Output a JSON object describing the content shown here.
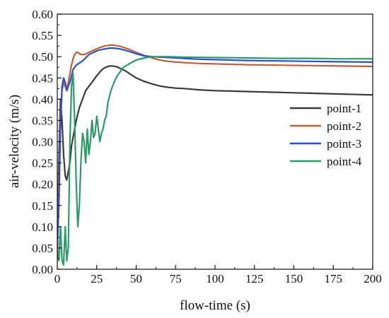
{
  "chart_data": {
    "type": "line",
    "title": "",
    "xlabel": "flow-time (s)",
    "ylabel": "air-velocity (m/s)",
    "xlim": [
      0,
      200
    ],
    "ylim": [
      0,
      0.6
    ],
    "x_ticks": [
      0,
      25,
      50,
      75,
      100,
      125,
      150,
      175,
      200
    ],
    "x_tick_labels": [
      "0",
      "25",
      "50",
      "75",
      "100",
      "125",
      "150",
      "175",
      "200"
    ],
    "y_ticks": [
      0,
      0.05,
      0.1,
      0.15,
      0.2,
      0.25,
      0.3,
      0.35,
      0.4,
      0.45,
      0.5,
      0.55,
      0.6
    ],
    "y_tick_labels": [
      "0.00",
      "0.05",
      "0.10",
      "0.15",
      "0.20",
      "0.25",
      "0.30",
      "0.35",
      "0.40",
      "0.45",
      "0.50",
      "0.55",
      "0.60"
    ],
    "grid": false,
    "legend_position": "right",
    "series": [
      {
        "name": "point-1",
        "color": "#3a3a3a",
        "x": [
          0,
          1,
          2,
          3,
          4,
          5,
          6,
          7,
          8,
          9,
          10,
          12,
          14,
          16,
          18,
          20,
          22,
          25,
          28,
          30,
          33,
          35,
          38,
          40,
          43,
          45,
          50,
          55,
          60,
          65,
          70,
          75,
          80,
          90,
          100,
          110,
          120,
          130,
          140,
          150,
          160,
          170,
          180,
          190,
          200
        ],
        "y": [
          0.05,
          0.25,
          0.4,
          0.35,
          0.27,
          0.22,
          0.21,
          0.23,
          0.25,
          0.29,
          0.31,
          0.35,
          0.38,
          0.4,
          0.42,
          0.43,
          0.44,
          0.455,
          0.468,
          0.474,
          0.478,
          0.478,
          0.476,
          0.472,
          0.467,
          0.462,
          0.45,
          0.442,
          0.436,
          0.431,
          0.428,
          0.426,
          0.425,
          0.422,
          0.42,
          0.419,
          0.418,
          0.417,
          0.416,
          0.415,
          0.414,
          0.413,
          0.412,
          0.411,
          0.41
        ]
      },
      {
        "name": "point-2",
        "color": "#c0603a",
        "x": [
          0,
          1,
          2,
          3,
          4,
          5,
          6,
          7,
          8,
          9,
          10,
          11,
          12,
          13,
          15,
          17,
          20,
          23,
          26,
          30,
          33,
          36,
          40,
          45,
          50,
          55,
          60,
          65,
          70,
          80,
          90,
          100,
          120,
          140,
          160,
          180,
          200
        ],
        "y": [
          0.05,
          0.2,
          0.35,
          0.42,
          0.44,
          0.43,
          0.42,
          0.44,
          0.46,
          0.48,
          0.495,
          0.505,
          0.51,
          0.51,
          0.505,
          0.505,
          0.51,
          0.515,
          0.52,
          0.525,
          0.527,
          0.527,
          0.524,
          0.518,
          0.51,
          0.503,
          0.497,
          0.492,
          0.489,
          0.486,
          0.484,
          0.483,
          0.481,
          0.48,
          0.479,
          0.478,
          0.477
        ]
      },
      {
        "name": "point-3",
        "color": "#2a4fd0",
        "x": [
          0,
          1,
          2,
          3,
          4,
          5,
          6,
          7,
          8,
          9,
          10,
          12,
          14,
          16,
          18,
          20,
          23,
          26,
          30,
          33,
          36,
          40,
          45,
          50,
          55,
          60,
          65,
          70,
          80,
          90,
          100,
          120,
          140,
          160,
          180,
          200
        ],
        "y": [
          0.05,
          0.15,
          0.33,
          0.43,
          0.45,
          0.44,
          0.42,
          0.43,
          0.44,
          0.455,
          0.47,
          0.48,
          0.485,
          0.49,
          0.497,
          0.505,
          0.51,
          0.515,
          0.518,
          0.52,
          0.52,
          0.518,
          0.513,
          0.507,
          0.502,
          0.5,
          0.499,
          0.498,
          0.496,
          0.494,
          0.493,
          0.491,
          0.49,
          0.489,
          0.488,
          0.487
        ]
      },
      {
        "name": "point-4",
        "color": "#2e9a6a",
        "x": [
          0,
          1,
          2,
          3,
          4,
          5,
          6,
          7,
          8,
          9,
          10,
          11,
          12,
          13,
          14,
          15,
          16,
          17,
          18,
          19,
          20,
          21,
          22,
          23,
          24,
          25,
          26,
          27,
          28,
          29,
          30,
          31,
          32,
          34,
          36,
          38,
          40,
          42,
          45,
          48,
          50,
          55,
          60,
          70,
          80,
          100,
          120,
          140,
          160,
          180,
          200
        ],
        "y": [
          0.05,
          0.02,
          0.1,
          0.02,
          0.01,
          0.1,
          0.02,
          0.05,
          0.3,
          0.43,
          0.46,
          0.35,
          0.2,
          0.1,
          0.15,
          0.25,
          0.32,
          0.3,
          0.25,
          0.33,
          0.27,
          0.3,
          0.35,
          0.31,
          0.32,
          0.36,
          0.33,
          0.3,
          0.32,
          0.33,
          0.35,
          0.36,
          0.39,
          0.42,
          0.44,
          0.455,
          0.465,
          0.475,
          0.482,
          0.488,
          0.492,
          0.497,
          0.5,
          0.5,
          0.499,
          0.498,
          0.497,
          0.496,
          0.496,
          0.495,
          0.495
        ]
      }
    ]
  }
}
